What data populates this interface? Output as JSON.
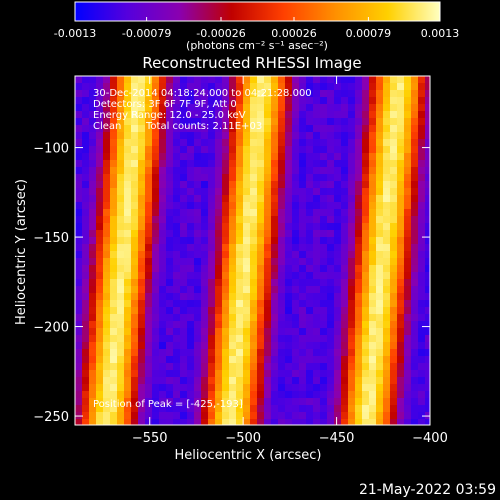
{
  "colorbar": {
    "tick_labels": [
      "-0.0013",
      "-0.00079",
      "-0.00026",
      "0.00026",
      "0.00079",
      "0.0013"
    ],
    "tick_values": [
      -0.0013,
      -0.00079,
      -0.00026,
      0.00026,
      0.00079,
      0.0013
    ],
    "range": [
      -0.0013,
      0.0013
    ],
    "unit_label": "(photons cm⁻² s⁻¹ asec⁻²)",
    "colors": [
      "#0000ff",
      "#5500dd",
      "#8a00b0",
      "#c00000",
      "#ff4000",
      "#ff9000",
      "#ffd000",
      "#ffffc0"
    ]
  },
  "chart_data": {
    "type": "heatmap",
    "title": "Reconstructed RHESSI Image",
    "xlabel": "Heliocentric X (arcsec)",
    "ylabel": "Heliocentric Y (arcsec)",
    "xlim": [
      -590,
      -400
    ],
    "ylim": [
      -255,
      -60
    ],
    "x_ticks": [
      -550,
      -500,
      -450,
      -400
    ],
    "x_tick_labels": [
      "−550",
      "−500",
      "−450",
      "−400"
    ],
    "y_ticks": [
      -100,
      -150,
      -200,
      -250
    ],
    "y_tick_labels": [
      "−100",
      "−150",
      "−200",
      "−250"
    ],
    "bright_ridges_x_at_bottom": [
      -573,
      -507,
      -434
    ],
    "ridge_tilt_arcsec_per_arcsec": 0.09,
    "grid": false
  },
  "annotations": {
    "time_range": "30-Dec-2014 04:18:24.000 to 04:21:28.000",
    "detectors": "Detectors: 3F 6F 7F 9F, Att 0",
    "energy_range": "Energy Range: 12.0 - 25.0 keV",
    "clean_label": "Clean",
    "total_counts": "Total counts: 2.11E+03",
    "peak_position": "Position of Peak = [-425,-193]"
  },
  "footer": {
    "date_stamp": "21-May-2022 03:59"
  }
}
